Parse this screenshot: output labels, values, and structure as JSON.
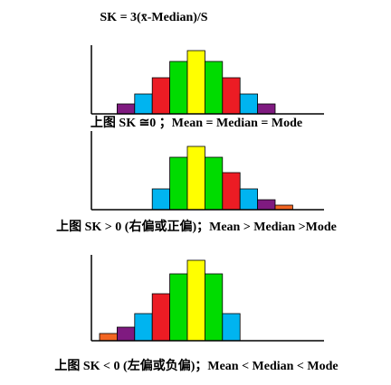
{
  "chart_data": [
    {
      "type": "bar",
      "title": "SK = 3(x̄-Median)/S",
      "caption": "上图 SK ≅0 ；Mean = Median = Mode",
      "categories": [
        null,
        null,
        null,
        null,
        null,
        null,
        null,
        null,
        null,
        null,
        null
      ],
      "values": [
        null,
        11,
        22,
        40,
        58,
        70,
        58,
        40,
        22,
        11,
        null
      ],
      "colors": [
        null,
        "#7f1a80",
        "#00b4f0",
        "#ec1c24",
        "#00dc00",
        "#ffff00",
        "#00dc00",
        "#ec1c24",
        "#00b4f0",
        "#7f1a80",
        null
      ],
      "ylim": [
        0,
        76
      ]
    },
    {
      "type": "bar",
      "caption": "上图 SK > 0 (右偏或正偏)；Mean > Median >Mode",
      "categories": [
        null,
        null,
        null,
        null,
        null,
        null,
        null,
        null,
        null,
        null,
        null
      ],
      "values": [
        null,
        null,
        null,
        23,
        58,
        70,
        58,
        41,
        23,
        11,
        5
      ],
      "colors": [
        null,
        null,
        null,
        "#00b4f0",
        "#00dc00",
        "#ffff00",
        "#00dc00",
        "#ec1c24",
        "#00b4f0",
        "#7f1a80",
        "#f26522"
      ],
      "ylim": [
        0,
        87
      ]
    },
    {
      "type": "bar",
      "caption": "上图 SK < 0 (左偏或负偏)；Mean < Median < Mode",
      "categories": [
        null,
        null,
        null,
        null,
        null,
        null,
        null,
        null,
        null,
        null,
        null
      ],
      "values": [
        8,
        15,
        30,
        52,
        74,
        89,
        74,
        30,
        null,
        null,
        null
      ],
      "colors": [
        "#f26522",
        "#7f1a80",
        "#00b4f0",
        "#ec1c24",
        "#00dc00",
        "#ffff00",
        "#00dc00",
        "#00b4f0",
        null,
        null,
        null
      ],
      "ylim": [
        0,
        95
      ]
    }
  ]
}
